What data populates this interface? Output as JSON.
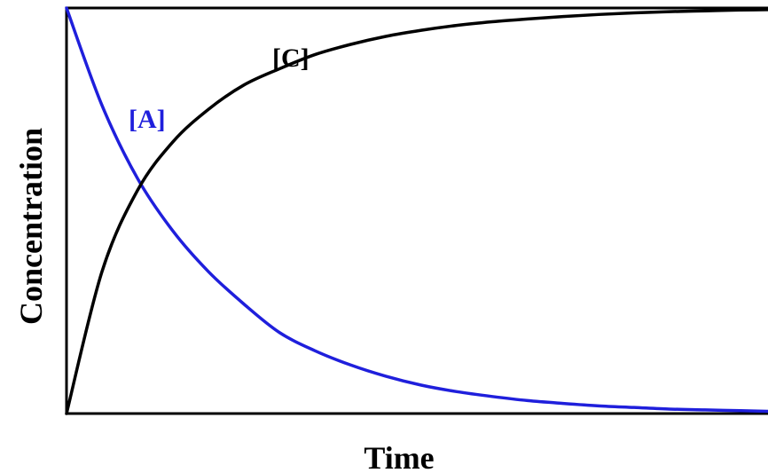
{
  "chart_data": {
    "type": "line",
    "title": "",
    "xlabel": "Time",
    "ylabel": "Concentration",
    "xlim": [
      0,
      10
    ],
    "ylim": [
      0,
      1
    ],
    "grid": false,
    "x": [
      0,
      0.5,
      1,
      1.5,
      2,
      2.5,
      3,
      3.5,
      4,
      4.5,
      5,
      5.5,
      6,
      6.5,
      7,
      7.5,
      8,
      8.5,
      9,
      9.5,
      10
    ],
    "series": [
      {
        "name": "[A]",
        "color": "#1f1fdc",
        "values": [
          1.0,
          0.76,
          0.58,
          0.45,
          0.35,
          0.27,
          0.2,
          0.155,
          0.12,
          0.092,
          0.07,
          0.054,
          0.042,
          0.032,
          0.025,
          0.019,
          0.015,
          0.011,
          0.009,
          0.007,
          0.005
        ]
      },
      {
        "name": "[C]",
        "color": "#000000",
        "values": [
          0.0,
          0.35,
          0.55,
          0.67,
          0.75,
          0.81,
          0.85,
          0.885,
          0.91,
          0.93,
          0.945,
          0.957,
          0.966,
          0.973,
          0.979,
          0.984,
          0.988,
          0.991,
          0.993,
          0.995,
          0.996
        ]
      }
    ]
  }
}
